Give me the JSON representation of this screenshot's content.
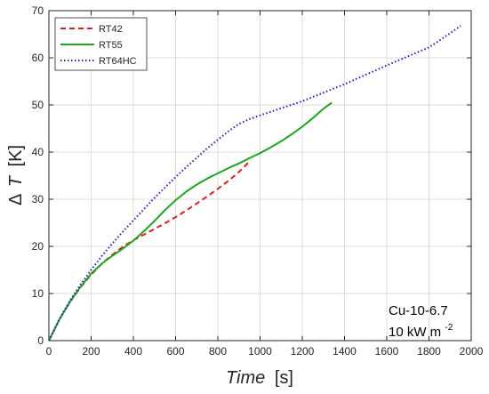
{
  "chart_data": {
    "type": "line",
    "xlabel_italic": "Time",
    "xlabel_unit": "[s]",
    "ylabel_symbol": "Δ",
    "ylabel_italic": "T",
    "ylabel_unit": "[K]",
    "xlim": [
      0,
      2000
    ],
    "ylim": [
      0,
      70
    ],
    "xticks": [
      0,
      200,
      400,
      600,
      800,
      1000,
      1200,
      1400,
      1600,
      1800,
      2000
    ],
    "yticks": [
      0,
      10,
      20,
      30,
      40,
      50,
      60,
      70
    ],
    "grid": true,
    "legend_position": "top-left",
    "series": [
      {
        "name": "RT42",
        "color": "#e41a1c",
        "style": "dashed",
        "x": [
          0,
          50,
          100,
          150,
          200,
          250,
          300,
          350,
          400,
          450,
          500,
          550,
          600,
          650,
          700,
          750,
          800,
          850,
          900,
          950
        ],
        "y": [
          0,
          4.5,
          8.2,
          11.3,
          14.0,
          16.3,
          18.2,
          19.9,
          21.3,
          22.5,
          23.7,
          24.9,
          26.2,
          27.6,
          29.1,
          30.6,
          32.2,
          33.9,
          35.8,
          38.0
        ]
      },
      {
        "name": "RT55",
        "color": "#1aa81a",
        "style": "solid",
        "x": [
          0,
          50,
          100,
          150,
          200,
          250,
          300,
          350,
          400,
          450,
          500,
          550,
          600,
          650,
          700,
          750,
          800,
          850,
          900,
          950,
          1000,
          1050,
          1100,
          1150,
          1200,
          1250,
          1300,
          1340
        ],
        "y": [
          0,
          4.5,
          8.3,
          11.4,
          14.2,
          16.3,
          18.0,
          19.5,
          21.2,
          23.2,
          25.4,
          27.7,
          29.8,
          31.6,
          33.1,
          34.4,
          35.5,
          36.6,
          37.6,
          38.7,
          39.8,
          41.0,
          42.3,
          43.8,
          45.4,
          47.2,
          49.2,
          50.5
        ]
      },
      {
        "name": "RT64HC",
        "color": "#1f1fc8",
        "style": "dotted",
        "x": [
          0,
          50,
          100,
          150,
          200,
          250,
          300,
          350,
          400,
          450,
          500,
          550,
          600,
          650,
          700,
          750,
          800,
          850,
          900,
          950,
          1000,
          1100,
          1200,
          1300,
          1400,
          1500,
          1600,
          1700,
          1800,
          1850,
          1900,
          1950
        ],
        "y": [
          0,
          4.6,
          8.5,
          11.9,
          15.0,
          17.9,
          20.6,
          23.1,
          25.5,
          27.9,
          30.3,
          32.5,
          34.7,
          36.8,
          38.8,
          40.8,
          42.6,
          44.4,
          46.0,
          47.0,
          47.8,
          49.3,
          50.8,
          52.6,
          54.4,
          56.4,
          58.4,
          60.3,
          62.2,
          63.7,
          65.2,
          66.8
        ]
      }
    ]
  },
  "annotations": {
    "sample": "Cu-10-6.7",
    "flux_text": "10 kW m",
    "flux_sup": "-2"
  }
}
